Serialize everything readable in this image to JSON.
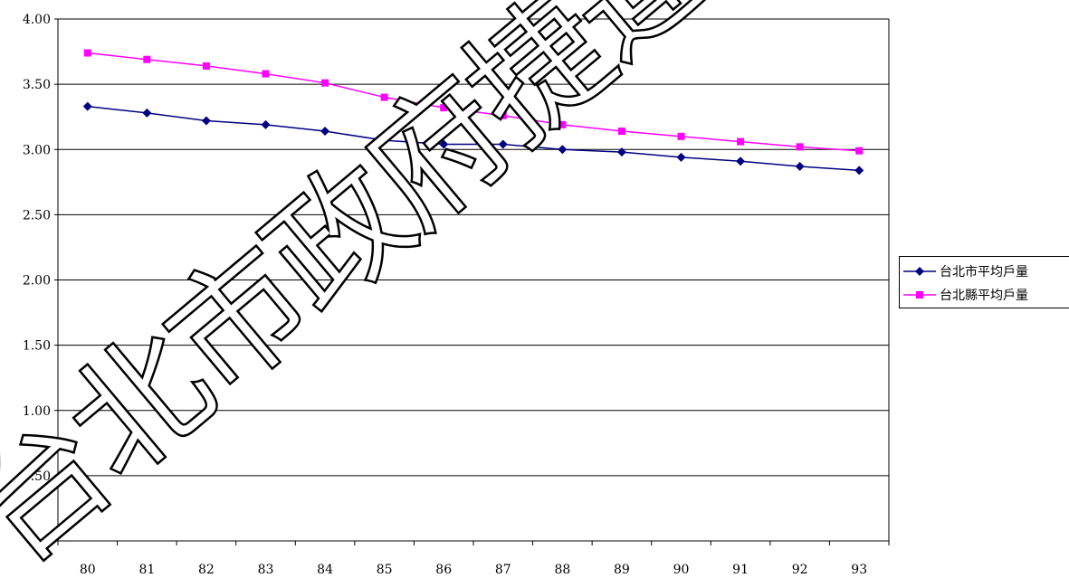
{
  "chart_data": {
    "type": "line",
    "title": "",
    "xlabel": "",
    "ylabel": "",
    "categories": [
      "80",
      "81",
      "82",
      "83",
      "84",
      "85",
      "86",
      "87",
      "88",
      "89",
      "90",
      "91",
      "92",
      "93"
    ],
    "ylim": [
      0,
      4
    ],
    "yticks": [
      0,
      0.5,
      1,
      1.5,
      2,
      2.5,
      3,
      3.5,
      4
    ],
    "ytick_labels": [
      "-",
      "0.50",
      "1.00",
      "1.50",
      "2.00",
      "2.50",
      "3.00",
      "3.50",
      "4.00"
    ],
    "grid": "horizontal",
    "legend_position": "right",
    "series": [
      {
        "name": "台北市平均戶量",
        "color": "#000080",
        "marker": "diamond",
        "values": [
          3.33,
          3.28,
          3.22,
          3.19,
          3.14,
          3.07,
          3.04,
          3.04,
          3.0,
          2.98,
          2.94,
          2.91,
          2.87,
          2.84
        ]
      },
      {
        "name": "台北縣平均戶量",
        "color": "#ff00ff",
        "marker": "square",
        "values": [
          3.74,
          3.69,
          3.64,
          3.58,
          3.51,
          3.4,
          3.32,
          3.26,
          3.19,
          3.14,
          3.1,
          3.06,
          3.02,
          2.99
        ]
      }
    ],
    "watermark": "台北市政府捷運工"
  }
}
